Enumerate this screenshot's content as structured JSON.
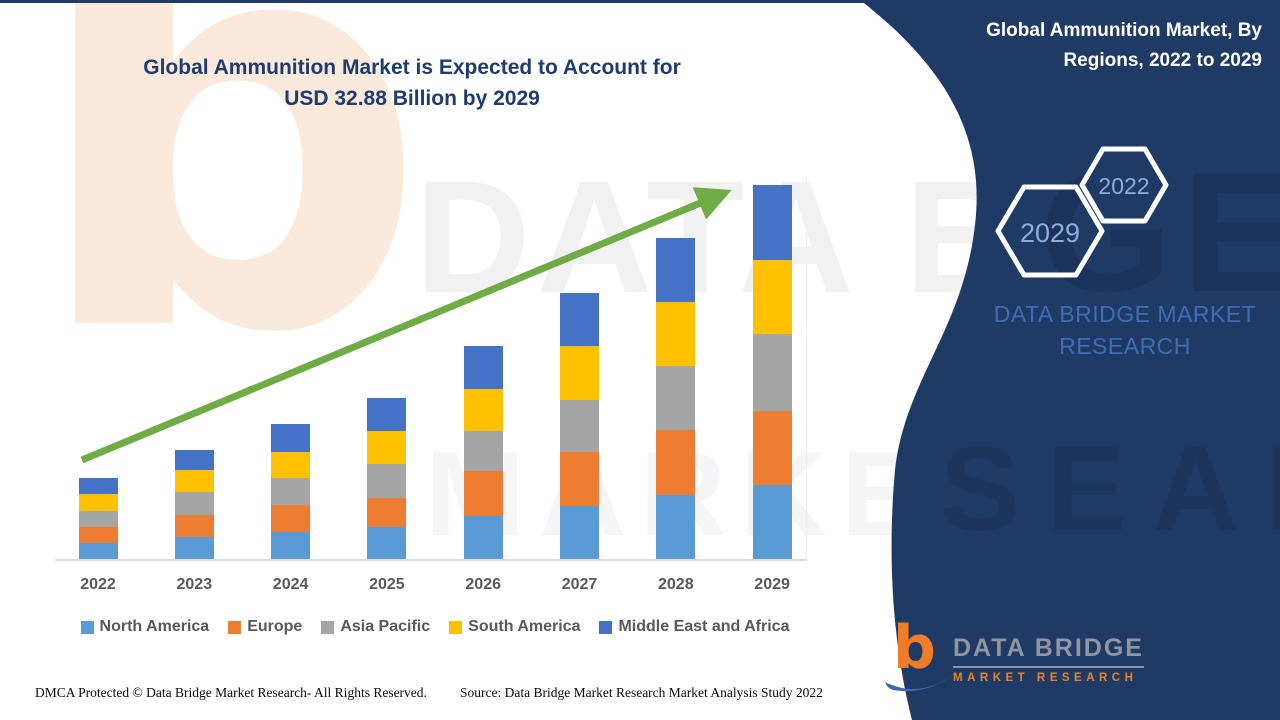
{
  "header": {
    "title": "Global Ammunition Market is Expected to Account for USD 32.88 Billion by 2029"
  },
  "side_panel": {
    "title": "Global Ammunition Market, By Regions, 2022 to 2029",
    "hexagons": [
      {
        "label": "2029"
      },
      {
        "label": "2022"
      }
    ],
    "brand_text": "DATA BRIDGE MARKET RESEARCH",
    "colors": {
      "panel": "#203a66",
      "brand_text": "#3e6db5",
      "hex_label": "#8faadc",
      "hex_outline": "#ffffff"
    }
  },
  "watermark": {
    "letter_glyph": "b",
    "letters_top": "DATA BRIDGE",
    "letters_bottom": "MARKET RESE",
    "navy_letters_top": "GE",
    "navy_letters_bottom": "SEARCH"
  },
  "logo": {
    "glyph": "b",
    "name_top": "DATA BRIDGE",
    "name_bottom": "MARKET  RESEARCH"
  },
  "footer": {
    "dmca": "DMCA Protected © Data Bridge Market Research- All Rights Reserved.",
    "source": "Source: Data Bridge Market Research Market Analysis Study 2022"
  },
  "chart_data": {
    "type": "bar",
    "stacked": true,
    "title": "Global Ammunition Market is Expected to Account for USD 32.88 Billion by 2029",
    "unit": "USD Billion",
    "categories": [
      "2022",
      "2023",
      "2024",
      "2025",
      "2026",
      "2027",
      "2028",
      "2029"
    ],
    "series": [
      {
        "name": "North America",
        "color": "#5b9bd5",
        "values": [
          1.4,
          1.9,
          2.4,
          2.8,
          3.8,
          4.7,
          5.6,
          6.5
        ]
      },
      {
        "name": "Europe",
        "color": "#ed7d31",
        "values": [
          1.4,
          1.9,
          2.4,
          2.6,
          4.0,
          4.8,
          5.7,
          6.5
        ]
      },
      {
        "name": "Asia Pacific",
        "color": "#a5a5a5",
        "values": [
          1.4,
          2.0,
          2.4,
          3.0,
          3.5,
          4.6,
          5.6,
          6.8
        ]
      },
      {
        "name": "South America",
        "color": "#ffc000",
        "values": [
          1.5,
          1.9,
          2.3,
          2.9,
          3.7,
          4.8,
          5.6,
          6.5
        ]
      },
      {
        "name": "Middle East and Africa",
        "color": "#4472c4",
        "values": [
          1.4,
          1.8,
          2.5,
          2.9,
          3.8,
          4.7,
          5.6,
          6.58
        ]
      }
    ],
    "totals_usd_billion": [
      7.1,
      9.5,
      11.9,
      14.2,
      18.8,
      23.6,
      28.1,
      32.88
    ],
    "ylim": [
      0,
      33
    ],
    "grid": false,
    "legend_position": "bottom",
    "trend_arrow": true,
    "trend_arrow_color": "#6fac46",
    "xlabel": "",
    "ylabel": ""
  }
}
